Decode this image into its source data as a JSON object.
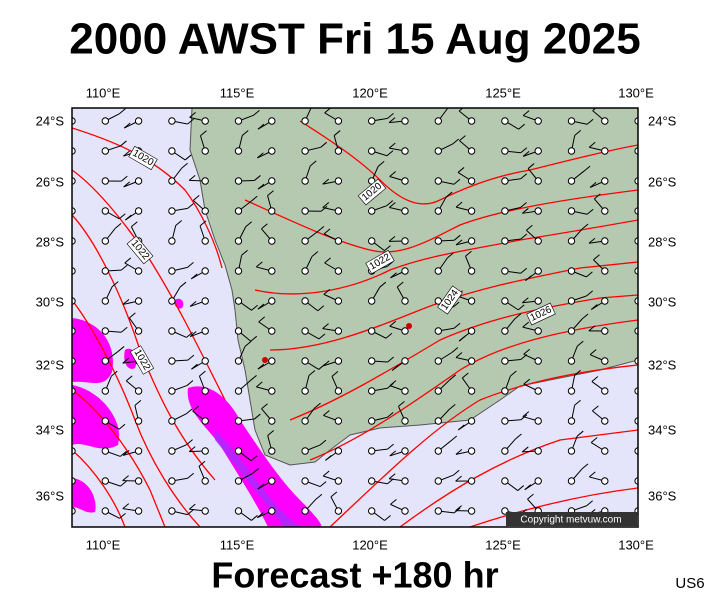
{
  "header": {
    "title": "2000 AWST Fri 15 Aug 2025"
  },
  "footer": {
    "forecast": "Forecast +180 hr",
    "code": "US6"
  },
  "map": {
    "copyright": "Copyright metvuw.com",
    "longitude_labels": [
      "110°E",
      "115°E",
      "120°E",
      "125°E",
      "130°E"
    ],
    "latitude_labels": [
      "24°S",
      "26°S",
      "28°S",
      "30°S",
      "32°S",
      "34°S",
      "36°S"
    ],
    "isobar_labels": [
      "1020",
      "1020",
      "1022",
      "1022",
      "1024",
      "1026",
      "1022"
    ]
  }
}
